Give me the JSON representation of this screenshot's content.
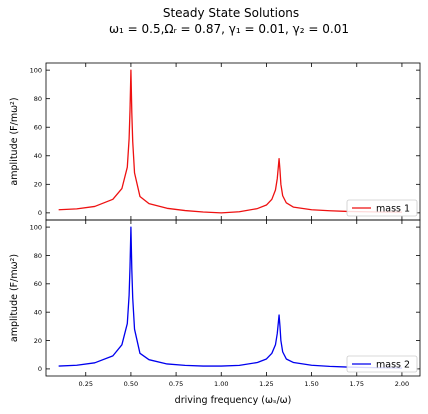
{
  "chart_data": {
    "type": "line",
    "title": "Steady State Solutions",
    "subtitle": "ω₁ =  0.5,Ωᵣ =  0.87, γ₁ =  0.01, γ₂ =  0.01",
    "xlabel": "driving frequency (ωₛ/ω)",
    "xlim": [
      0.03,
      2.1
    ],
    "xticks": [
      0.25,
      0.5,
      0.75,
      1.0,
      1.25,
      1.5,
      1.75,
      2.0
    ],
    "xtick_labels": [
      "0.25",
      "0.50",
      "0.75",
      "1.00",
      "1.25",
      "1.50",
      "1.75",
      "2.00"
    ],
    "grid": false,
    "legend_position": "bottom-right",
    "panels": [
      {
        "ylabel": "amplitude (F/mω²)",
        "ylim": [
          -5,
          105
        ],
        "yticks": [
          0,
          20,
          40,
          60,
          80,
          100
        ],
        "ytick_labels": [
          "0",
          "20",
          "40",
          "60",
          "80",
          "100"
        ],
        "series": [
          {
            "name": "mass 1",
            "color": "#ee1111",
            "x": [
              0.1,
              0.2,
              0.3,
              0.4,
              0.45,
              0.48,
              0.49,
              0.495,
              0.5,
              0.505,
              0.51,
              0.52,
              0.55,
              0.6,
              0.7,
              0.8,
              0.9,
              1.0,
              1.1,
              1.2,
              1.25,
              1.28,
              1.3,
              1.31,
              1.32,
              1.325,
              1.33,
              1.34,
              1.36,
              1.4,
              1.5,
              1.6,
              1.7,
              1.8,
              1.9,
              2.0
            ],
            "y": [
              2.2,
              2.8,
              4.5,
              9.5,
              17,
              32,
              52,
              72,
              100,
              70,
              50,
              28,
              11.5,
              6.5,
              3.2,
              1.6,
              0.6,
              0.0,
              0.8,
              3.0,
              5.5,
              9.5,
              16,
              24,
              38,
              30,
              20,
              12,
              7,
              4,
              2.2,
              1.5,
              1.0,
              0.8,
              0.6,
              0.5
            ]
          }
        ]
      },
      {
        "ylabel": "amplitude (F/mω²)",
        "ylim": [
          -5,
          105
        ],
        "yticks": [
          0,
          20,
          40,
          60,
          80,
          100
        ],
        "ytick_labels": [
          "0",
          "20",
          "40",
          "60",
          "80",
          "100"
        ],
        "series": [
          {
            "name": "mass 2",
            "color": "#0000ee",
            "x": [
              0.1,
              0.2,
              0.3,
              0.4,
              0.45,
              0.48,
              0.49,
              0.495,
              0.5,
              0.505,
              0.51,
              0.52,
              0.55,
              0.6,
              0.7,
              0.8,
              0.9,
              1.0,
              1.1,
              1.2,
              1.25,
              1.28,
              1.3,
              1.31,
              1.32,
              1.325,
              1.33,
              1.34,
              1.36,
              1.4,
              1.5,
              1.6,
              1.7,
              1.8,
              1.9,
              2.0
            ],
            "y": [
              2.0,
              2.6,
              4.3,
              9.2,
              17,
              32,
              52,
              72,
              100,
              70,
              50,
              28,
              11,
              6.5,
              3.5,
              2.5,
              2.0,
              2.0,
              2.5,
              4.5,
              7.0,
              11,
              17,
              25,
              38,
              30,
              20,
              12,
              7,
              4.5,
              2.6,
              1.8,
              1.3,
              1.0,
              0.8,
              0.6
            ]
          }
        ]
      }
    ]
  }
}
